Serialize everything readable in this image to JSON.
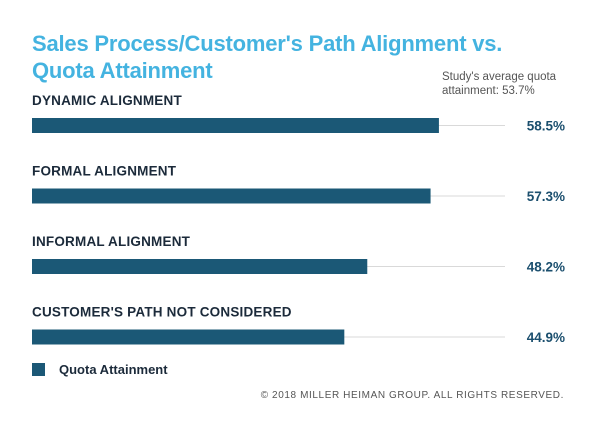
{
  "title": "Sales Process/Customer's Path Alignment vs. Quota Attainment",
  "average_note": "Study's average quota attainment: 53.7%",
  "colors": {
    "bar": "#1b5876",
    "title": "#44b3e0",
    "track": "#d9d9d9"
  },
  "chart_data": {
    "type": "bar",
    "orientation": "horizontal",
    "categories": [
      "DYNAMIC ALIGNMENT",
      "FORMAL ALIGNMENT",
      "INFORMAL ALIGNMENT",
      "CUSTOMER'S PATH NOT CONSIDERED"
    ],
    "series": [
      {
        "name": "Quota Attainment",
        "values": [
          58.5,
          57.3,
          48.2,
          44.9
        ]
      }
    ],
    "value_labels": [
      "58.5%",
      "57.3%",
      "48.2%",
      "44.9%"
    ],
    "xlim": [
      0,
      68
    ],
    "grid": false,
    "legend_position": "bottom-left"
  },
  "legend": {
    "label": "Quota Attainment"
  },
  "copyright": "© 2018 MILLER HEIMAN GROUP. ALL RIGHTS RESERVED."
}
